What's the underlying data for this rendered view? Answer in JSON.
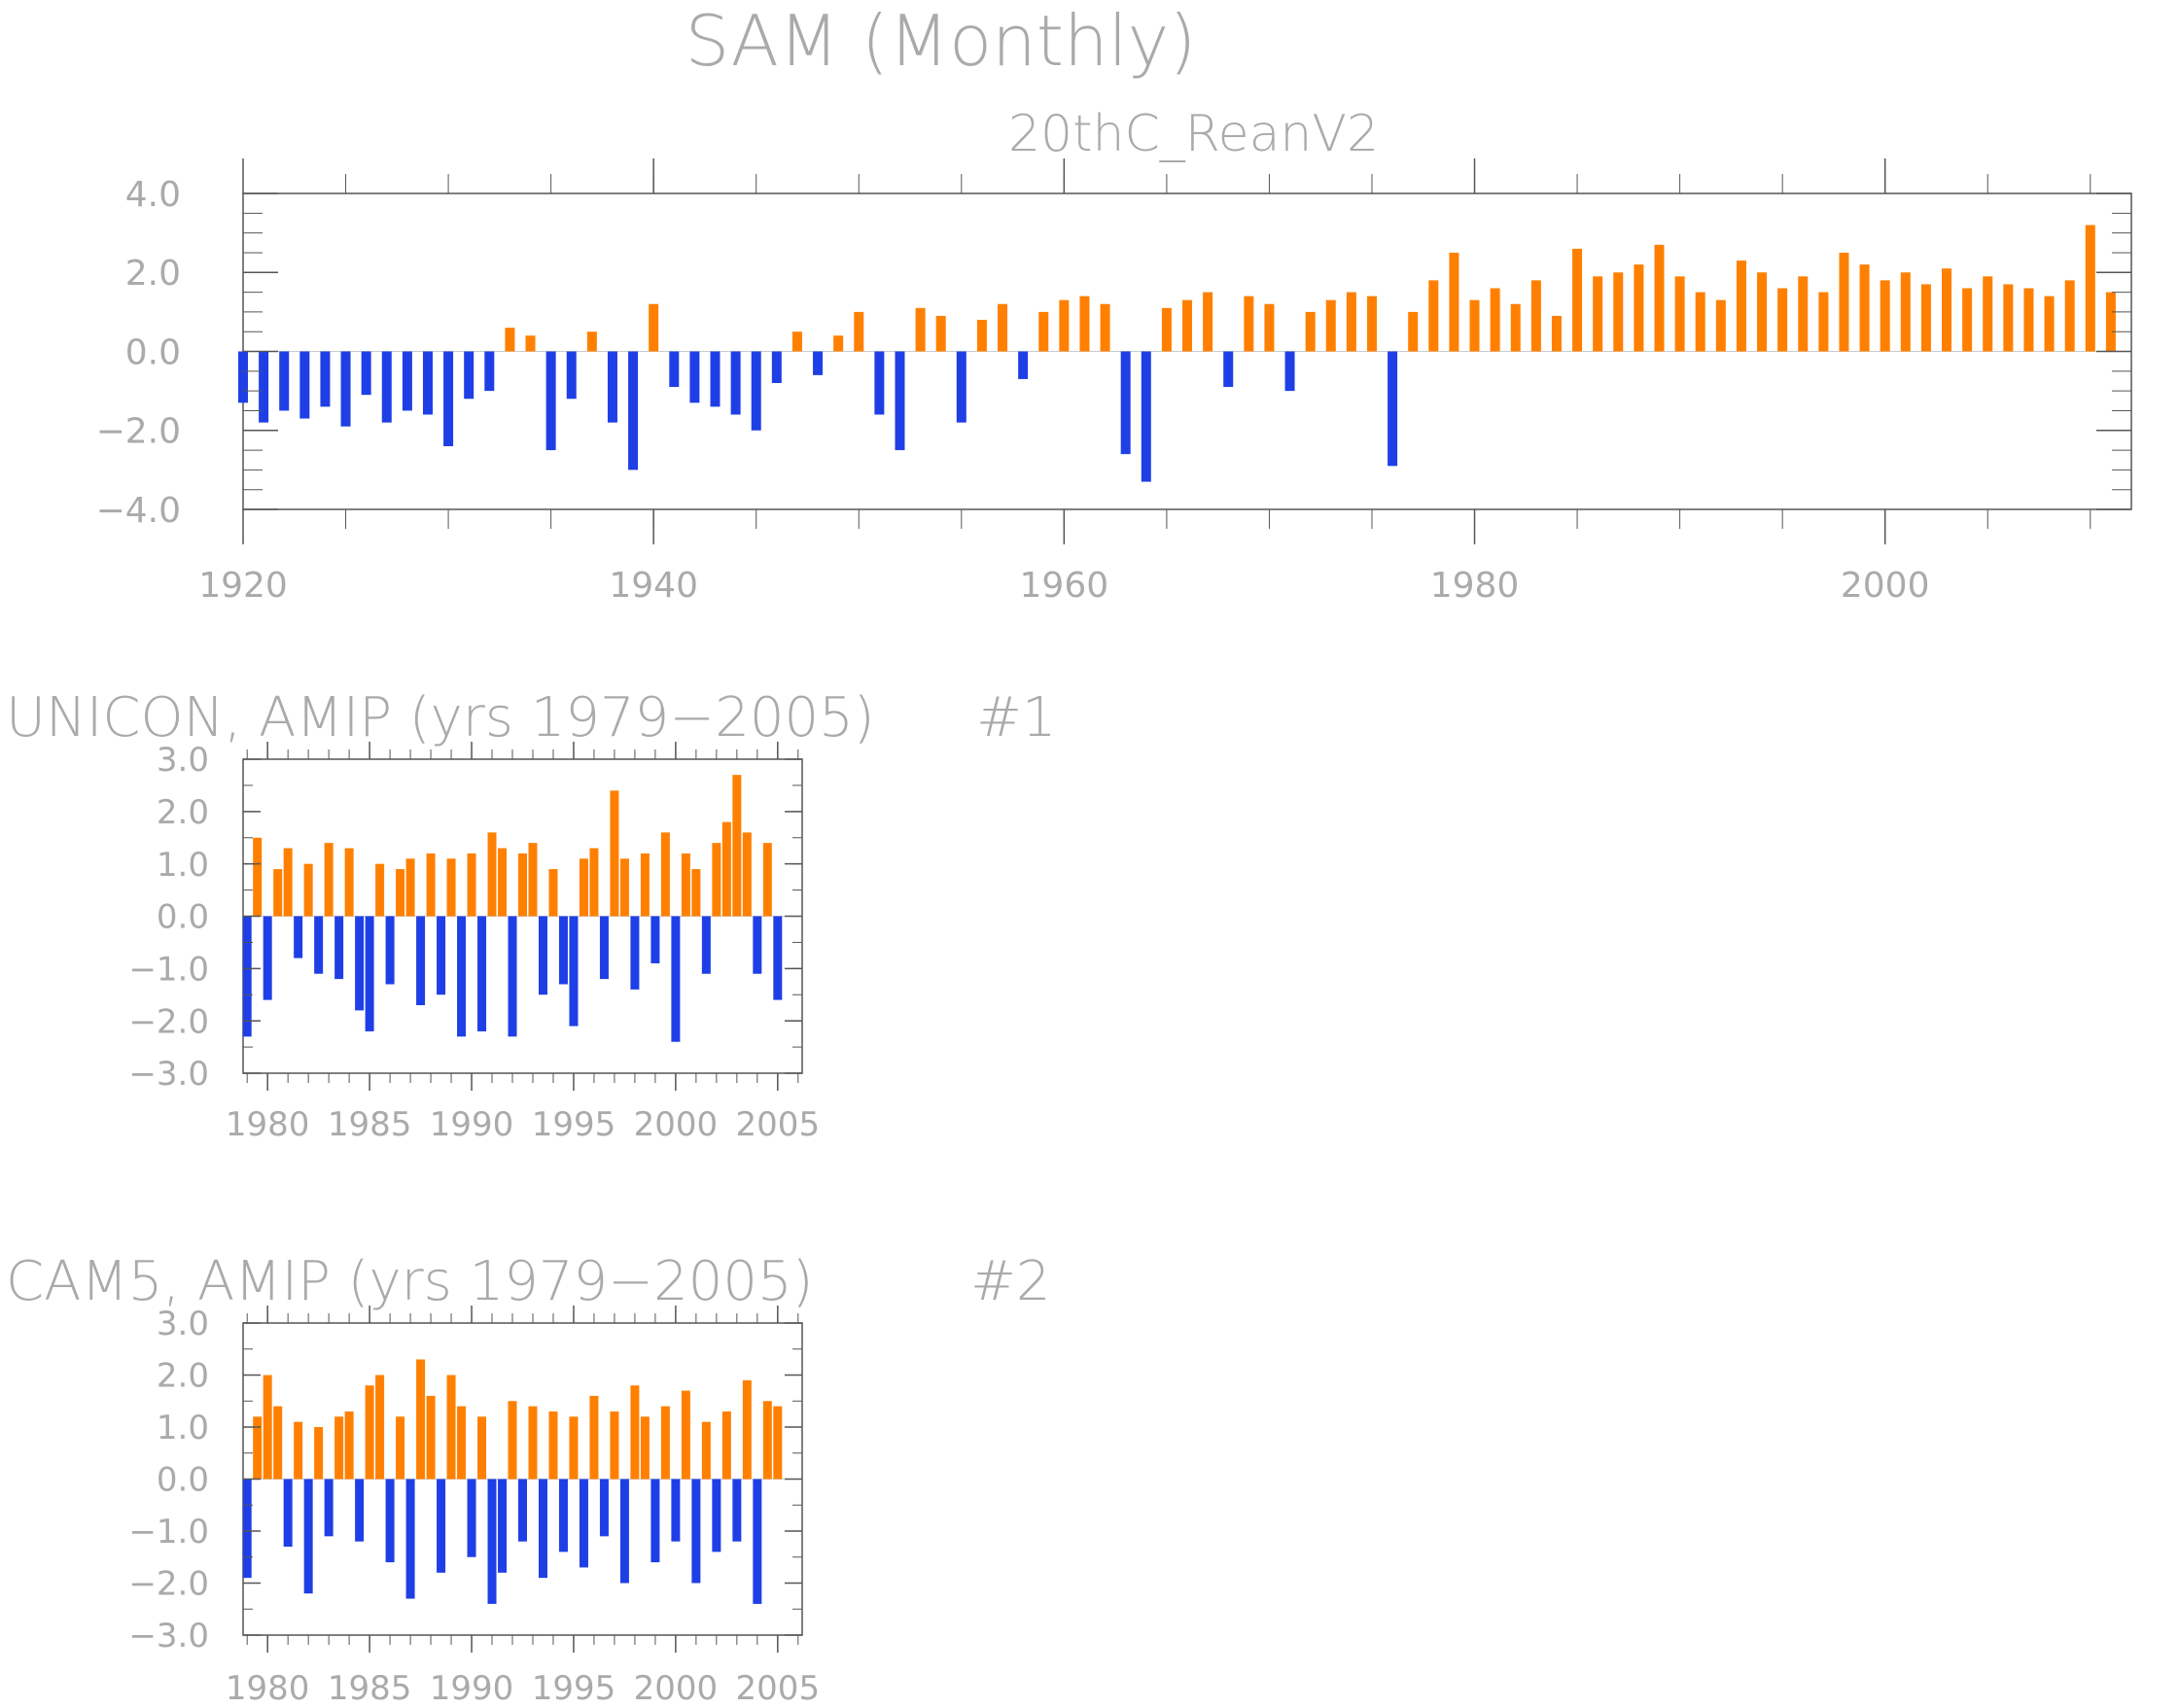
{
  "title": "SAM (Monthly)",
  "subtitle": "20thC_ReanV2",
  "colors": {
    "positive": "#ff8000",
    "negative": "#1f3fe6",
    "axis": "#555555",
    "text": "#aaaaaa"
  },
  "chart_data": [
    {
      "type": "bar",
      "title": "20thC_ReanV2",
      "xlim": [
        1920,
        2012
      ],
      "ylim": [
        -4.0,
        4.0
      ],
      "yticks": [
        "4.0",
        "2.0",
        "0.0",
        "−2.0",
        "−4.0"
      ],
      "ytick_values": [
        4,
        2,
        0,
        -2,
        -4
      ],
      "xticks": [
        "1920",
        "1940",
        "1960",
        "1980",
        "2000"
      ],
      "xtick_values": [
        1920,
        1940,
        1960,
        1980,
        2000
      ],
      "x_minor_step": 5,
      "y_minor_step": 0.5,
      "series": [
        {
          "x": [
            1920.0,
            1921.0,
            1922.0,
            1923.0,
            1924.0,
            1925.0,
            1926.0,
            1927.0,
            1928.0,
            1929.0,
            1930.0,
            1931.0,
            1932.0,
            1933.0,
            1934.0,
            1935.0,
            1936.0,
            1937.0,
            1938.0,
            1939.0,
            1940.0,
            1941.0,
            1942.0,
            1943.0,
            1944.0,
            1945.0,
            1946.0,
            1947.0,
            1948.0,
            1949.0,
            1950.0,
            1951.0,
            1952.0,
            1953.0,
            1954.0,
            1955.0,
            1956.0,
            1957.0,
            1958.0,
            1959.0,
            1960.0,
            1961.0,
            1962.0,
            1963.0,
            1964.0,
            1965.0,
            1966.0,
            1967.0,
            1968.0,
            1969.0,
            1970.0,
            1971.0,
            1972.0,
            1973.0,
            1974.0,
            1975.0,
            1976.0,
            1977.0,
            1978.0,
            1979.0,
            1980.0,
            1981.0,
            1982.0,
            1983.0,
            1984.0,
            1985.0,
            1986.0,
            1987.0,
            1988.0,
            1989.0,
            1990.0,
            1991.0,
            1992.0,
            1993.0,
            1994.0,
            1995.0,
            1996.0,
            1997.0,
            1998.0,
            1999.0,
            2000.0,
            2001.0,
            2002.0,
            2003.0,
            2004.0,
            2005.0,
            2006.0,
            2007.0,
            2008.0,
            2009.0,
            2010.0,
            2011.0
          ],
          "y": [
            -1.3,
            -1.8,
            -1.5,
            -1.7,
            -1.4,
            -1.9,
            -1.1,
            -1.8,
            -1.5,
            -1.6,
            -2.4,
            -1.2,
            -1.0,
            0.6,
            0.4,
            -2.5,
            -1.2,
            0.5,
            -1.8,
            -3.0,
            1.2,
            -0.9,
            -1.3,
            -1.4,
            -1.6,
            -2.0,
            -0.8,
            0.5,
            -0.6,
            0.4,
            1.0,
            -1.6,
            -2.5,
            1.1,
            0.9,
            -1.8,
            0.8,
            1.2,
            -0.7,
            1.0,
            1.3,
            1.4,
            1.2,
            -2.6,
            -3.3,
            1.1,
            1.3,
            1.5,
            -0.9,
            1.4,
            1.2,
            -1.0,
            1.0,
            1.3,
            1.5,
            1.4,
            -2.9,
            1.0,
            1.8,
            2.5,
            1.3,
            1.6,
            1.2,
            1.8,
            0.9,
            2.6,
            1.9,
            2.0,
            2.2,
            2.7,
            1.9,
            1.5,
            1.3,
            2.3,
            2.0,
            1.6,
            1.9,
            1.5,
            2.5,
            2.2,
            1.8,
            2.0,
            1.7,
            2.1,
            1.6,
            1.9,
            1.7,
            1.6,
            1.4,
            1.8,
            3.2,
            1.5
          ]
        }
      ]
    },
    {
      "type": "bar",
      "title": "UNICON, AMIP (yrs 1979−2005)",
      "tag": "#1",
      "xlim": [
        1978.8,
        2006.2
      ],
      "ylim": [
        -3.0,
        3.0
      ],
      "yticks": [
        "3.0",
        "2.0",
        "1.0",
        "0.0",
        "−1.0",
        "−2.0",
        "−3.0"
      ],
      "ytick_values": [
        3,
        2,
        1,
        0,
        -1,
        -2,
        -3
      ],
      "xticks": [
        "1980",
        "1985",
        "1990",
        "1995",
        "2000",
        "2005"
      ],
      "xtick_values": [
        1980,
        1985,
        1990,
        1995,
        2000,
        2005
      ],
      "x_minor_step": 1,
      "y_minor_step": 0.5,
      "series": [
        {
          "x": [
            1979.0,
            1979.5,
            1980.0,
            1980.5,
            1981.0,
            1981.5,
            1982.0,
            1982.5,
            1983.0,
            1983.5,
            1984.0,
            1984.5,
            1985.0,
            1985.5,
            1986.0,
            1986.5,
            1987.0,
            1987.5,
            1988.0,
            1988.5,
            1989.0,
            1989.5,
            1990.0,
            1990.5,
            1991.0,
            1991.5,
            1992.0,
            1992.5,
            1993.0,
            1993.5,
            1994.0,
            1994.5,
            1995.0,
            1995.5,
            1996.0,
            1996.5,
            1997.0,
            1997.5,
            1998.0,
            1998.5,
            1999.0,
            1999.5,
            2000.0,
            2000.5,
            2001.0,
            2001.5,
            2002.0,
            2002.5,
            2003.0,
            2003.5,
            2004.0,
            2004.5,
            2005.0
          ],
          "y": [
            -2.3,
            1.5,
            -1.6,
            0.9,
            1.3,
            -0.8,
            1.0,
            -1.1,
            1.4,
            -1.2,
            1.3,
            -1.8,
            -2.2,
            1.0,
            -1.3,
            0.9,
            1.1,
            -1.7,
            1.2,
            -1.5,
            1.1,
            -2.3,
            1.2,
            -2.2,
            1.6,
            1.3,
            -2.3,
            1.2,
            1.4,
            -1.5,
            0.9,
            -1.3,
            -2.1,
            1.1,
            1.3,
            -1.2,
            2.4,
            1.1,
            -1.4,
            1.2,
            -0.9,
            1.6,
            -2.4,
            1.2,
            0.9,
            -1.1,
            1.4,
            1.8,
            2.7,
            1.6,
            -1.1,
            1.4,
            -1.6
          ]
        }
      ]
    },
    {
      "type": "bar",
      "title": "CAM5, AMIP (yrs 1979−2005)",
      "tag": "#2",
      "xlim": [
        1978.8,
        2006.2
      ],
      "ylim": [
        -3.0,
        3.0
      ],
      "yticks": [
        "3.0",
        "2.0",
        "1.0",
        "0.0",
        "−1.0",
        "−2.0",
        "−3.0"
      ],
      "ytick_values": [
        3,
        2,
        1,
        0,
        -1,
        -2,
        -3
      ],
      "xticks": [
        "1980",
        "1985",
        "1990",
        "1995",
        "2000",
        "2005"
      ],
      "xtick_values": [
        1980,
        1985,
        1990,
        1995,
        2000,
        2005
      ],
      "x_minor_step": 1,
      "y_minor_step": 0.5,
      "series": [
        {
          "x": [
            1979.0,
            1979.5,
            1980.0,
            1980.5,
            1981.0,
            1981.5,
            1982.0,
            1982.5,
            1983.0,
            1983.5,
            1984.0,
            1984.5,
            1985.0,
            1985.5,
            1986.0,
            1986.5,
            1987.0,
            1987.5,
            1988.0,
            1988.5,
            1989.0,
            1989.5,
            1990.0,
            1990.5,
            1991.0,
            1991.5,
            1992.0,
            1992.5,
            1993.0,
            1993.5,
            1994.0,
            1994.5,
            1995.0,
            1995.5,
            1996.0,
            1996.5,
            1997.0,
            1997.5,
            1998.0,
            1998.5,
            1999.0,
            1999.5,
            2000.0,
            2000.5,
            2001.0,
            2001.5,
            2002.0,
            2002.5,
            2003.0,
            2003.5,
            2004.0,
            2004.5,
            2005.0
          ],
          "y": [
            -1.9,
            1.2,
            2.0,
            1.4,
            -1.3,
            1.1,
            -2.2,
            1.0,
            -1.1,
            1.2,
            1.3,
            -1.2,
            1.8,
            2.0,
            -1.6,
            1.2,
            -2.3,
            2.3,
            1.6,
            -1.8,
            2.0,
            1.4,
            -1.5,
            1.2,
            -2.4,
            -1.8,
            1.5,
            -1.2,
            1.4,
            -1.9,
            1.3,
            -1.4,
            1.2,
            -1.7,
            1.6,
            -1.1,
            1.3,
            -2.0,
            1.8,
            1.2,
            -1.6,
            1.4,
            -1.2,
            1.7,
            -2.0,
            1.1,
            -1.4,
            1.3,
            -1.2,
            1.9,
            -2.4,
            1.5,
            1.4
          ]
        }
      ]
    }
  ]
}
